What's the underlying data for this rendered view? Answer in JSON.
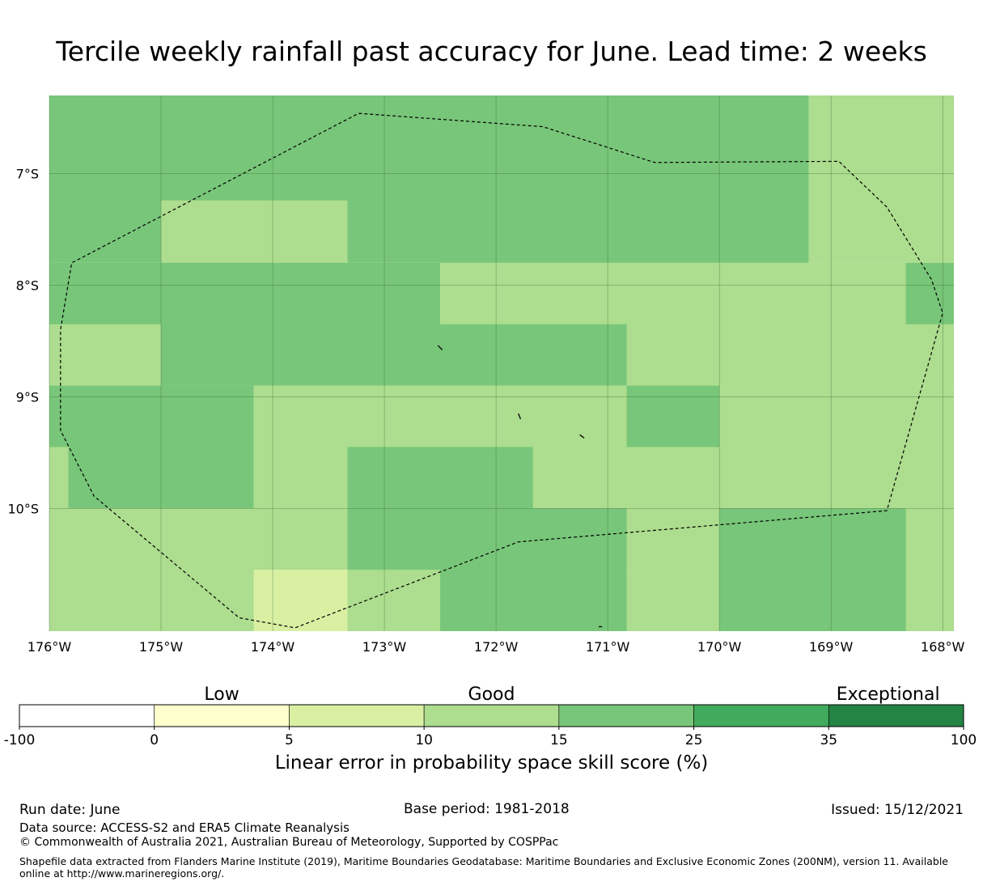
{
  "title": "Tercile weekly rainfall past accuracy for June. Lead time: 2 weeks",
  "map": {
    "region_lon": [
      -176,
      -167.9
    ],
    "region_lat": [
      -6.3,
      -11.1
    ],
    "lat_ticks": [
      {
        "value": -7,
        "label": "7°S"
      },
      {
        "value": -8,
        "label": "8°S"
      },
      {
        "value": -9,
        "label": "9°S"
      },
      {
        "value": -10,
        "label": "10°S"
      }
    ],
    "lon_ticks": [
      {
        "value": -176,
        "label": "176°W"
      },
      {
        "value": -175,
        "label": "175°W"
      },
      {
        "value": -174,
        "label": "174°W"
      },
      {
        "value": -173,
        "label": "173°W"
      },
      {
        "value": -172,
        "label": "172°W"
      },
      {
        "value": -171,
        "label": "171°W"
      },
      {
        "value": -170,
        "label": "170°W"
      },
      {
        "value": -169,
        "label": "169°W"
      },
      {
        "value": -168,
        "label": "168°W"
      }
    ],
    "grid_cells": [
      {
        "lon": [
          -176,
          -169.2
        ],
        "lat": [
          -6.3,
          -7.8
        ],
        "class": 4
      },
      {
        "lon": [
          -175,
          -173.33
        ],
        "lat": [
          -7.24,
          -7.8
        ],
        "class": 3
      },
      {
        "lon": [
          -169.2,
          -167.9
        ],
        "lat": [
          -6.3,
          -7.8
        ],
        "class": 3
      },
      {
        "lon": [
          -176,
          -172.5
        ],
        "lat": [
          -7.8,
          -8.9
        ],
        "class": 4
      },
      {
        "lon": [
          -176,
          -175
        ],
        "lat": [
          -8.35,
          -8.9
        ],
        "class": 3
      },
      {
        "lon": [
          -172.5,
          -167.9
        ],
        "lat": [
          -7.8,
          -8.9
        ],
        "class": 3
      },
      {
        "lon": [
          -172.5,
          -170.83
        ],
        "lat": [
          -8.35,
          -8.9
        ],
        "class": 4
      },
      {
        "lon": [
          -168.33,
          -167.9
        ],
        "lat": [
          -7.8,
          -8.35
        ],
        "class": 4
      },
      {
        "lon": [
          -176,
          -174.17
        ],
        "lat": [
          -8.9,
          -10.0
        ],
        "class": 4
      },
      {
        "lon": [
          -176,
          -175.83
        ],
        "lat": [
          -9.45,
          -10.0
        ],
        "class": 3
      },
      {
        "lon": [
          -174.17,
          -167.9
        ],
        "lat": [
          -8.9,
          -10.0
        ],
        "class": 3
      },
      {
        "lon": [
          -170.83,
          -170
        ],
        "lat": [
          -8.9,
          -9.45
        ],
        "class": 4
      },
      {
        "lon": [
          -173.33,
          -171.67
        ],
        "lat": [
          -9.45,
          -10.0
        ],
        "class": 4
      },
      {
        "lon": [
          -176,
          -167.9
        ],
        "lat": [
          -10.0,
          -11.1
        ],
        "class": 3
      },
      {
        "lon": [
          -173.33,
          -170.83
        ],
        "lat": [
          -10.0,
          -10.55
        ],
        "class": 4
      },
      {
        "lon": [
          -172.5,
          -170.83
        ],
        "lat": [
          -10.55,
          -11.1
        ],
        "class": 4
      },
      {
        "lon": [
          -170,
          -168.33
        ],
        "lat": [
          -10.0,
          -11.1
        ],
        "class": 4
      },
      {
        "lon": [
          -174.17,
          -173.33
        ],
        "lat": [
          -10.55,
          -11.1
        ],
        "class": 2
      }
    ],
    "eez_boundary": [
      [
        -173.23,
        -6.46
      ],
      [
        -171.58,
        -6.58
      ],
      [
        -170.58,
        -6.9
      ],
      [
        -168.93,
        -6.89
      ],
      [
        -168.5,
        -7.3
      ],
      [
        -168.1,
        -7.95
      ],
      [
        -168.0,
        -8.25
      ],
      [
        -168.5,
        -10.02
      ],
      [
        -171.8,
        -10.3
      ],
      [
        -173.8,
        -11.07
      ],
      [
        -174.3,
        -10.98
      ],
      [
        -175.6,
        -9.89
      ],
      [
        -175.9,
        -9.3
      ],
      [
        -175.9,
        -8.4
      ],
      [
        -175.8,
        -7.8
      ],
      [
        -173.23,
        -6.46
      ]
    ],
    "islands": [
      [
        [
          -172.52,
          -8.54
        ],
        [
          -172.48,
          -8.58
        ]
      ],
      [
        [
          -171.8,
          -9.15
        ],
        [
          -171.78,
          -9.2
        ]
      ],
      [
        [
          -171.25,
          -9.34
        ],
        [
          -171.21,
          -9.37
        ]
      ],
      [
        [
          -171.08,
          -11.06
        ],
        [
          -171.05,
          -11.06
        ]
      ]
    ]
  },
  "colorbar": {
    "category_labels": [
      "Low",
      "Good",
      "Exceptional"
    ],
    "tick_labels": [
      "-100",
      "0",
      "5",
      "10",
      "15",
      "25",
      "35",
      "100"
    ],
    "colors": [
      "#ffffff",
      "#ffffcc",
      "#d9f0a3",
      "#addd8e",
      "#78c679",
      "#41ab5d",
      "#238443"
    ],
    "title": "Linear error in probability space skill score (%)"
  },
  "footer": {
    "run_date": "Run date: June",
    "base_period": "Base period: 1981-2018",
    "issued": "Issued: 15/12/2021",
    "data_source": "Data source: ACCESS-S2 and ERA5 Climate Reanalysis",
    "copyright": "© Commonwealth of Australia 2021, Australian Bureau of Meteorology, Supported by COSPPac",
    "shapefile_note": "Shapefile data extracted from Flanders Marine Institute (2019), Maritime Boundaries Geodatabase: Maritime Boundaries and Exclusive Economic Zones (200NM), version 11. Available online at http://www.marineregions.org/."
  }
}
